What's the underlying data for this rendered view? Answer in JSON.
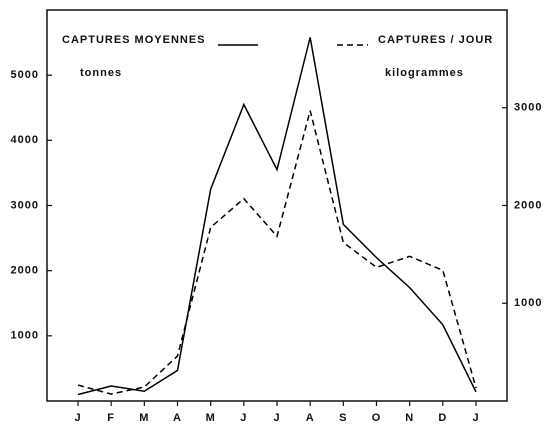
{
  "chart_data": {
    "type": "line",
    "categories": [
      "J",
      "F",
      "M",
      "A",
      "M",
      "J",
      "J",
      "A",
      "S",
      "O",
      "N",
      "D",
      "J"
    ],
    "y_label": "tonnes",
    "y2_label": "kilogrammes",
    "series": [
      {
        "name": "CAPTURES MOYENNES",
        "color": "#000000",
        "style": "solid",
        "values": [
          100,
          230,
          150,
          470,
          3250,
          4550,
          3550,
          5580,
          2710,
          2200,
          1740,
          1170,
          140
        ]
      },
      {
        "name": "CAPTURES / JOUR",
        "color": "#000000",
        "style": "dashed",
        "axis": "y2",
        "values": [
          163,
          71,
          143,
          460,
          1776,
          2070,
          1684,
          2970,
          1622,
          1367,
          1480,
          1337,
          133
        ]
      }
    ],
    "ylim": [
      0,
      6000
    ],
    "yticks": [
      1000,
      2000,
      3000,
      4000,
      5000
    ],
    "y2lim": [
      0,
      4000
    ],
    "y2ticks": [
      1000,
      2000,
      3000
    ],
    "grid": false
  }
}
